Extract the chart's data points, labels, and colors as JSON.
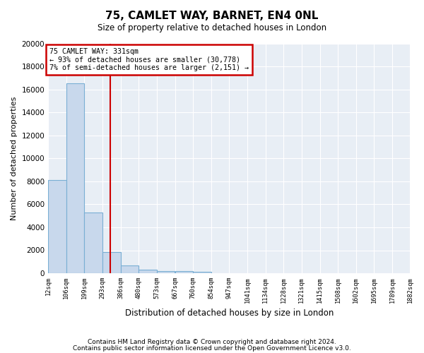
{
  "title": "75, CAMLET WAY, BARNET, EN4 0NL",
  "subtitle": "Size of property relative to detached houses in London",
  "xlabel": "Distribution of detached houses by size in London",
  "ylabel": "Number of detached properties",
  "bar_color": "#c8d8ec",
  "bar_edge_color": "#7aafd4",
  "bin_starts": [
    12,
    106,
    199,
    293,
    386,
    480,
    573,
    667,
    760,
    854,
    947,
    1041,
    1134,
    1228,
    1321,
    1415,
    1508,
    1602,
    1695,
    1789
  ],
  "bin_width": 93,
  "bin_labels": [
    "12sqm",
    "106sqm",
    "199sqm",
    "293sqm",
    "386sqm",
    "480sqm",
    "573sqm",
    "667sqm",
    "760sqm",
    "854sqm",
    "947sqm",
    "1041sqm",
    "1134sqm",
    "1228sqm",
    "1321sqm",
    "1415sqm",
    "1508sqm",
    "1602sqm",
    "1695sqm",
    "1789sqm",
    "1882sqm"
  ],
  "bar_heights": [
    8100,
    16500,
    5300,
    1850,
    700,
    320,
    200,
    170,
    120,
    0,
    0,
    0,
    0,
    0,
    0,
    0,
    0,
    0,
    0,
    0
  ],
  "property_size": 331,
  "property_label": "75 CAMLET WAY: 331sqm",
  "annotation_line1": "← 93% of detached houses are smaller (30,778)",
  "annotation_line2": "7% of semi-detached houses are larger (2,151) →",
  "ylim": [
    0,
    20000
  ],
  "yticks": [
    0,
    2000,
    4000,
    6000,
    8000,
    10000,
    12000,
    14000,
    16000,
    18000,
    20000
  ],
  "vline_color": "#cc0000",
  "annotation_box_edgecolor": "#cc0000",
  "background_color": "#e8eef5",
  "grid_color": "#ffffff",
  "footnote1": "Contains HM Land Registry data © Crown copyright and database right 2024.",
  "footnote2": "Contains public sector information licensed under the Open Government Licence v3.0."
}
